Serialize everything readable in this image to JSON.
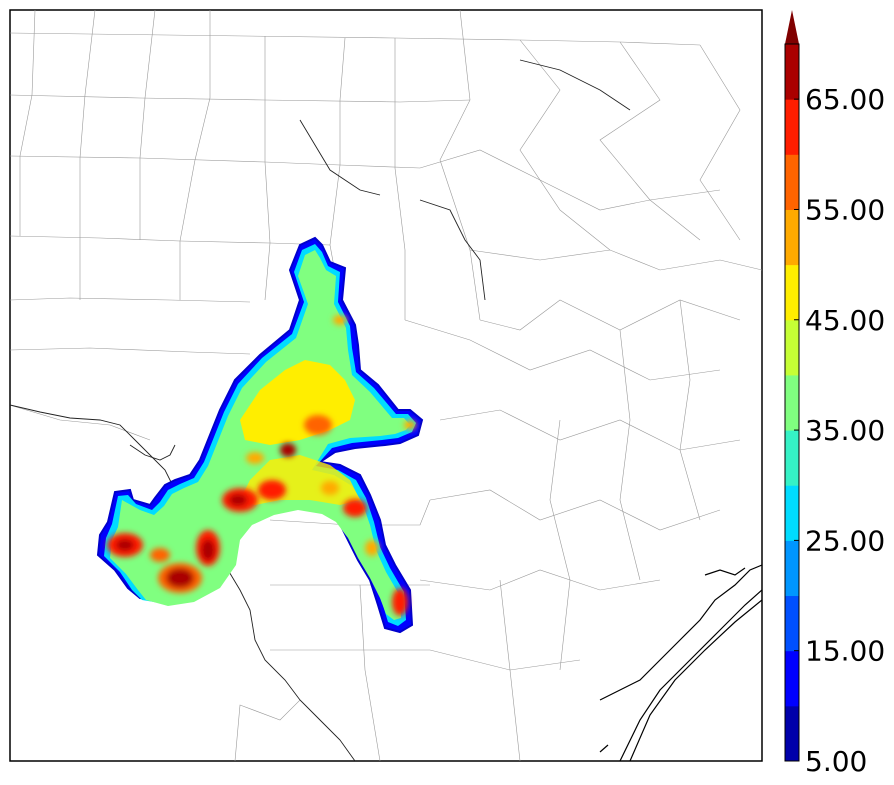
{
  "colorbar": {
    "tick_labels": [
      "5.00",
      "15.00",
      "25.00",
      "35.00",
      "45.00",
      "55.00",
      "65.00"
    ],
    "bins": [
      {
        "color": "#0000aa"
      },
      {
        "color": "#0000ff"
      },
      {
        "color": "#0050ff"
      },
      {
        "color": "#0096ff"
      },
      {
        "color": "#00dcff"
      },
      {
        "color": "#35f2c6"
      },
      {
        "color": "#80ff80"
      },
      {
        "color": "#c6ff35"
      },
      {
        "color": "#ffee00"
      },
      {
        "color": "#ffaa00"
      },
      {
        "color": "#ff6400"
      },
      {
        "color": "#ff1e00"
      },
      {
        "color": "#aa0000"
      }
    ],
    "extend_color": "#800000",
    "extend": "max"
  },
  "map": {
    "description_colors": {
      "background": "#ffffff",
      "county_lines": "#9a9a9a",
      "coast_lines": "#000000"
    }
  }
}
